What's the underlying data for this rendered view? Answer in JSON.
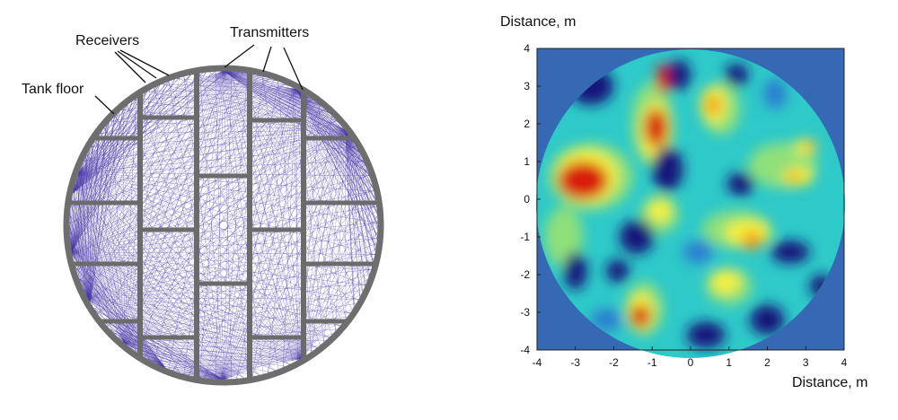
{
  "diagram": {
    "labels": {
      "receivers": "Receivers",
      "transmitters": "Transmitters",
      "tank_floor": "Tank floor"
    },
    "ray_color": "#4a3aa8",
    "plate_color": "#6b6b6b",
    "rim_color": "#6e6e6e"
  },
  "map": {
    "axis_label_y": "Distance, m",
    "axis_label_x": "Distance, m",
    "x_ticks": [
      "-4",
      "-3",
      "-2",
      "-1",
      "0",
      "1",
      "2",
      "3",
      "4"
    ],
    "y_ticks": [
      "4",
      "3",
      "2",
      "1",
      "0",
      "-1",
      "-2",
      "-3",
      "-4"
    ],
    "xlim": [
      -4,
      4
    ],
    "ylim": [
      -4,
      4
    ],
    "colormap": [
      "#13137a",
      "#2a7fd0",
      "#2ec9c9",
      "#8fe07a",
      "#f5f03a",
      "#f29a1e",
      "#d81d10"
    ],
    "background_color": "#3669b3"
  }
}
